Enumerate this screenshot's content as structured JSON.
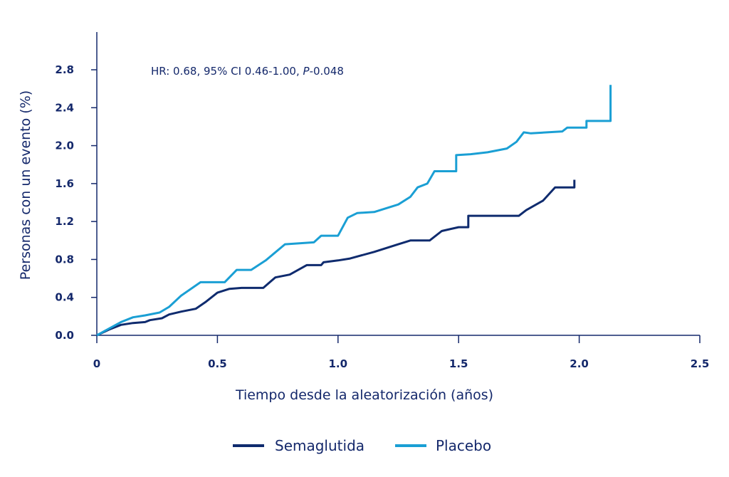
{
  "chart_data": {
    "type": "line",
    "annotation": {
      "prefix": "HR: 0.68, 95% CI 0.46-1.00, ",
      "p_label": "P",
      "suffix": "-0.048"
    },
    "xlabel": "Tiempo desde la aleatorización (años)",
    "ylabel": "Personas con un evento (%)",
    "xlim": [
      0,
      2.5
    ],
    "ylim": [
      0,
      3.2
    ],
    "x_ticks": [
      0,
      0.5,
      1.0,
      1.5,
      2.0,
      2.5
    ],
    "x_tick_labels": [
      "0",
      "0.5",
      "1.0",
      "1.5",
      "2.0",
      "2.5"
    ],
    "y_ticks": [
      0,
      0.4,
      0.8,
      1.2,
      1.6,
      2.0,
      2.4,
      2.8
    ],
    "y_tick_labels": [
      "0.0",
      "0.4",
      "0.8",
      "1.2",
      "1.6",
      "2.0",
      "2.4",
      "2.8"
    ],
    "grid": false,
    "legend_position": "bottom-center",
    "series": [
      {
        "name": "Semaglutida",
        "color": "#0f2b6e",
        "points": [
          [
            0,
            0
          ],
          [
            0.05,
            0.06
          ],
          [
            0.1,
            0.11
          ],
          [
            0.15,
            0.13
          ],
          [
            0.2,
            0.14
          ],
          [
            0.22,
            0.16
          ],
          [
            0.27,
            0.18
          ],
          [
            0.3,
            0.22
          ],
          [
            0.35,
            0.25
          ],
          [
            0.41,
            0.28
          ],
          [
            0.45,
            0.35
          ],
          [
            0.5,
            0.45
          ],
          [
            0.55,
            0.49
          ],
          [
            0.6,
            0.5
          ],
          [
            0.69,
            0.5
          ],
          [
            0.74,
            0.61
          ],
          [
            0.8,
            0.64
          ],
          [
            0.87,
            0.74
          ],
          [
            0.93,
            0.74
          ],
          [
            0.94,
            0.77
          ],
          [
            1.0,
            0.79
          ],
          [
            1.05,
            0.81
          ],
          [
            1.15,
            0.88
          ],
          [
            1.25,
            0.96
          ],
          [
            1.3,
            1.0
          ],
          [
            1.38,
            1.0
          ],
          [
            1.43,
            1.1
          ],
          [
            1.5,
            1.14
          ],
          [
            1.54,
            1.14
          ],
          [
            1.54,
            1.26
          ],
          [
            1.75,
            1.26
          ],
          [
            1.78,
            1.32
          ],
          [
            1.85,
            1.42
          ],
          [
            1.9,
            1.56
          ],
          [
            1.98,
            1.56
          ],
          [
            1.98,
            1.64
          ]
        ]
      },
      {
        "name": "Placebo",
        "color": "#1a9fd4",
        "points": [
          [
            0,
            0
          ],
          [
            0.05,
            0.07
          ],
          [
            0.1,
            0.14
          ],
          [
            0.15,
            0.19
          ],
          [
            0.2,
            0.21
          ],
          [
            0.26,
            0.24
          ],
          [
            0.3,
            0.3
          ],
          [
            0.35,
            0.42
          ],
          [
            0.43,
            0.56
          ],
          [
            0.53,
            0.56
          ],
          [
            0.58,
            0.69
          ],
          [
            0.64,
            0.69
          ],
          [
            0.7,
            0.79
          ],
          [
            0.78,
            0.96
          ],
          [
            0.9,
            0.98
          ],
          [
            0.93,
            1.05
          ],
          [
            1.0,
            1.05
          ],
          [
            1.04,
            1.24
          ],
          [
            1.08,
            1.29
          ],
          [
            1.15,
            1.3
          ],
          [
            1.25,
            1.38
          ],
          [
            1.3,
            1.46
          ],
          [
            1.33,
            1.56
          ],
          [
            1.37,
            1.6
          ],
          [
            1.4,
            1.73
          ],
          [
            1.49,
            1.73
          ],
          [
            1.49,
            1.9
          ],
          [
            1.55,
            1.91
          ],
          [
            1.62,
            1.93
          ],
          [
            1.7,
            1.97
          ],
          [
            1.74,
            2.04
          ],
          [
            1.77,
            2.14
          ],
          [
            1.8,
            2.13
          ],
          [
            1.93,
            2.15
          ],
          [
            1.95,
            2.19
          ],
          [
            2.03,
            2.19
          ],
          [
            2.03,
            2.26
          ],
          [
            2.13,
            2.26
          ],
          [
            2.13,
            2.64
          ]
        ]
      }
    ]
  }
}
